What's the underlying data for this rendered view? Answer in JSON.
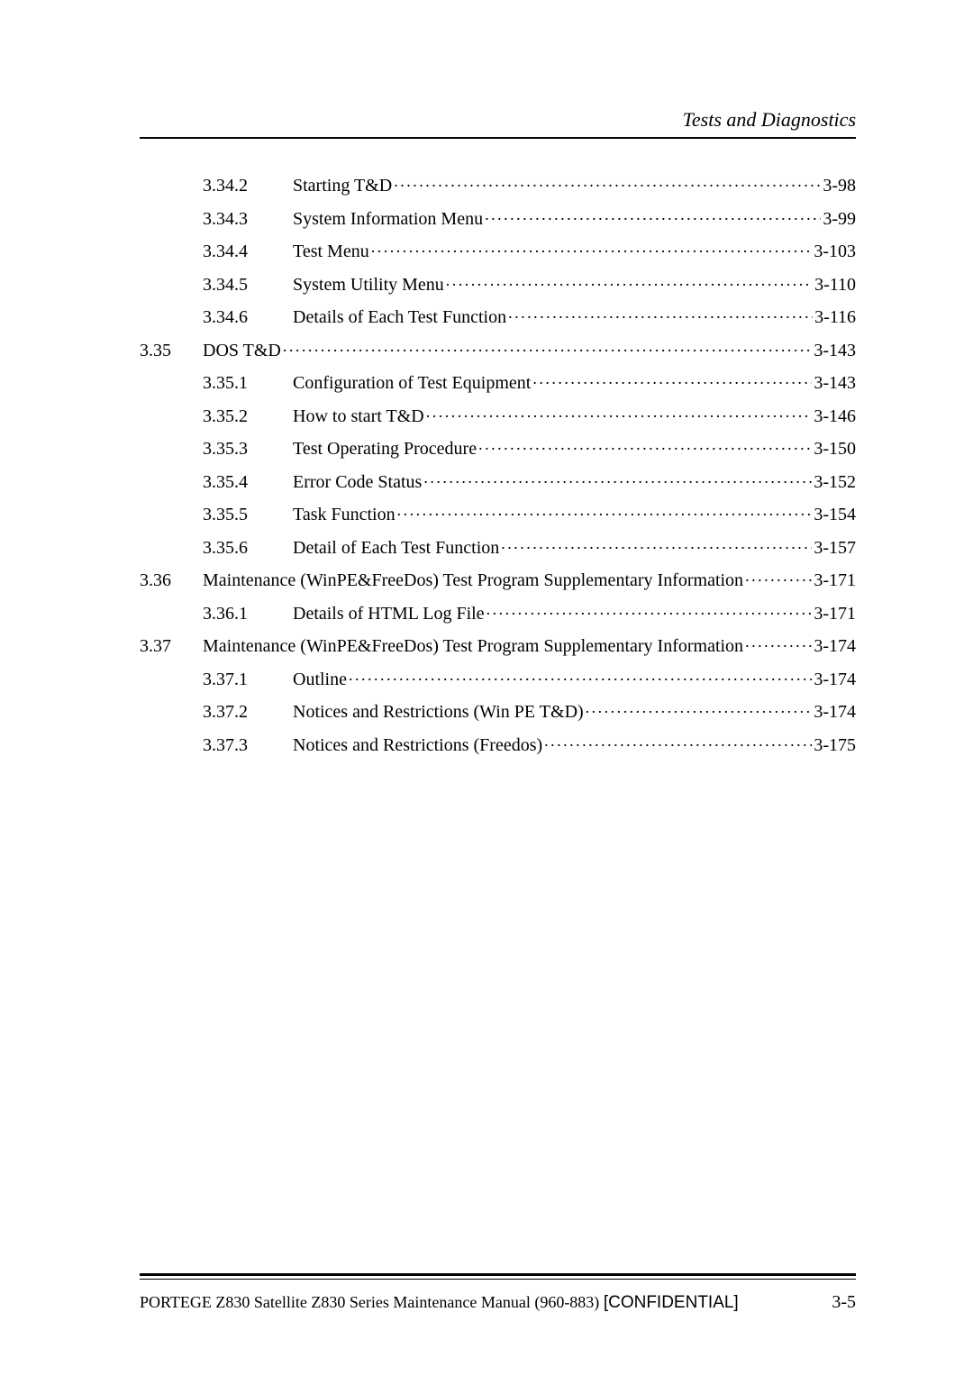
{
  "header": {
    "title": "Tests and Diagnostics"
  },
  "toc": {
    "rows": [
      {
        "level": "sub",
        "num": "3.34.2",
        "title": "Starting T&D",
        "page": "3-98"
      },
      {
        "level": "sub",
        "num": "3.34.3",
        "title": "System Information Menu",
        "page": "3-99"
      },
      {
        "level": "sub",
        "num": "3.34.4",
        "title": "Test Menu",
        "page": "3-103"
      },
      {
        "level": "sub",
        "num": "3.34.5",
        "title": "System Utility Menu",
        "page": "3-110"
      },
      {
        "level": "sub",
        "num": "3.34.6",
        "title": "Details of Each Test Function",
        "page": "3-116"
      },
      {
        "level": "top",
        "num": "3.35",
        "title": "DOS T&D",
        "page": "3-143"
      },
      {
        "level": "sub",
        "num": "3.35.1",
        "title": "Configuration of Test Equipment",
        "page": "3-143"
      },
      {
        "level": "sub",
        "num": "3.35.2",
        "title": "How to start T&D",
        "page": "3-146"
      },
      {
        "level": "sub",
        "num": "3.35.3",
        "title": "Test Operating Procedure",
        "page": "3-150"
      },
      {
        "level": "sub",
        "num": "3.35.4",
        "title": "Error Code Status",
        "page": "3-152"
      },
      {
        "level": "sub",
        "num": "3.35.5",
        "title": "Task Function",
        "page": "3-154"
      },
      {
        "level": "sub",
        "num": "3.35.6",
        "title": "Detail of Each Test Function",
        "page": "3-157"
      },
      {
        "level": "top",
        "num": "3.36",
        "title": "Maintenance (WinPE&FreeDos) Test Program Supplementary Information",
        "page": "3-171"
      },
      {
        "level": "sub",
        "num": "3.36.1",
        "title": "Details of HTML Log File",
        "page": "3-171"
      },
      {
        "level": "top",
        "num": "3.37",
        "title": "Maintenance (WinPE&FreeDos) Test Program Supplementary Information",
        "page": "3-174"
      },
      {
        "level": "sub",
        "num": "3.37.1",
        "title": "Outline",
        "page": "3-174"
      },
      {
        "level": "sub",
        "num": "3.37.2",
        "title": "Notices and Restrictions (Win PE T&D)",
        "page": "3-174"
      },
      {
        "level": "sub",
        "num": "3.37.3",
        "title": "Notices and Restrictions (Freedos)",
        "page": "3-175"
      }
    ]
  },
  "footer": {
    "left": "PORTEGE Z830 Satellite Z830 Series Maintenance Manual (960-883) ",
    "confidential": "[CONFIDENTIAL]",
    "right": "3-5"
  },
  "colors": {
    "text": "#000000",
    "background": "#ffffff",
    "rule": "#000000"
  },
  "fonts": {
    "body_family": "Times New Roman",
    "body_size_pt": 15,
    "header_italic": true,
    "footer_conf_family": "Arial"
  }
}
